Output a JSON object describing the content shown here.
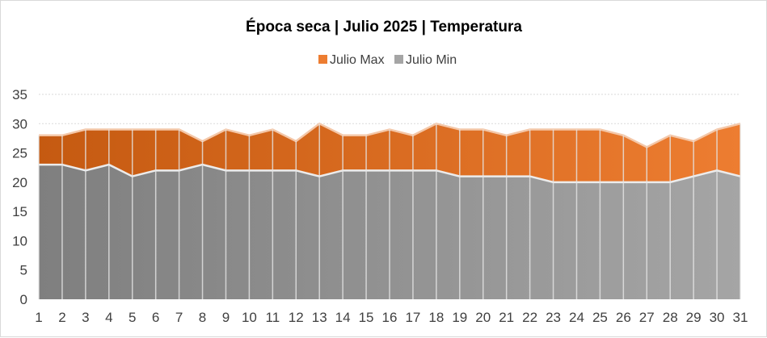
{
  "chart_data": {
    "type": "area",
    "title": "Época  seca | Julio 2025 | Temperatura",
    "xlabel": "",
    "ylabel": "",
    "ylim": [
      0,
      35
    ],
    "yticks": [
      0,
      5,
      10,
      15,
      20,
      25,
      30,
      35
    ],
    "grid": true,
    "legend_position": "top",
    "categories": [
      1,
      2,
      3,
      4,
      5,
      6,
      7,
      8,
      9,
      10,
      11,
      12,
      13,
      14,
      15,
      16,
      17,
      18,
      19,
      20,
      21,
      22,
      23,
      24,
      25,
      26,
      27,
      28,
      29,
      30,
      31
    ],
    "series": [
      {
        "name": "Julio Max",
        "color_start": "#c55a11",
        "color_end": "#ed7d31",
        "values": [
          28,
          28,
          29,
          29,
          29,
          29,
          29,
          27,
          29,
          28,
          29,
          27,
          30,
          28,
          28,
          29,
          28,
          30,
          29,
          29,
          28,
          29,
          29,
          29,
          29,
          28,
          26,
          28,
          27,
          29,
          30
        ]
      },
      {
        "name": "Julio Min",
        "color_start": "#7f7f7f",
        "color_end": "#a5a5a5",
        "values": [
          23,
          23,
          22,
          23,
          21,
          22,
          22,
          23,
          22,
          22,
          22,
          22,
          21,
          22,
          22,
          22,
          22,
          22,
          21,
          21,
          21,
          21,
          20,
          20,
          20,
          20,
          20,
          20,
          21,
          22,
          21
        ]
      }
    ]
  }
}
